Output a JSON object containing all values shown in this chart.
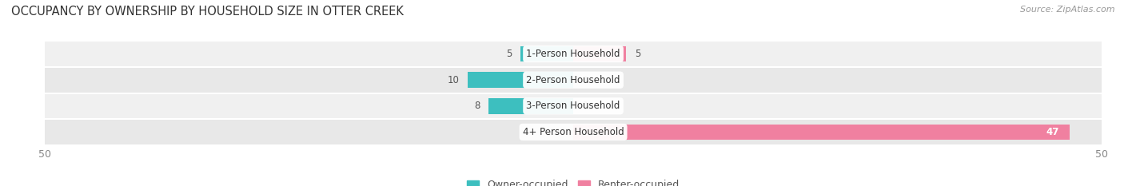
{
  "title": "OCCUPANCY BY OWNERSHIP BY HOUSEHOLD SIZE IN OTTER CREEK",
  "source": "Source: ZipAtlas.com",
  "categories": [
    "1-Person Household",
    "2-Person Household",
    "3-Person Household",
    "4+ Person Household"
  ],
  "owner_values": [
    5,
    10,
    8,
    0
  ],
  "renter_values": [
    5,
    0,
    0,
    47
  ],
  "owner_color": "#3dbfbf",
  "owner_color_light": "#a8dede",
  "renter_color": "#f080a0",
  "renter_color_light": "#f8b8cc",
  "row_bg_odd": "#f0f0f0",
  "row_bg_even": "#e8e8e8",
  "xlim_left": -50,
  "xlim_right": 50,
  "bar_height": 0.6,
  "legend_owner": "Owner-occupied",
  "legend_renter": "Renter-occupied",
  "title_fontsize": 10.5,
  "source_fontsize": 8,
  "label_fontsize": 8.5,
  "value_fontsize": 8.5,
  "tick_fontsize": 9,
  "legend_fontsize": 9
}
